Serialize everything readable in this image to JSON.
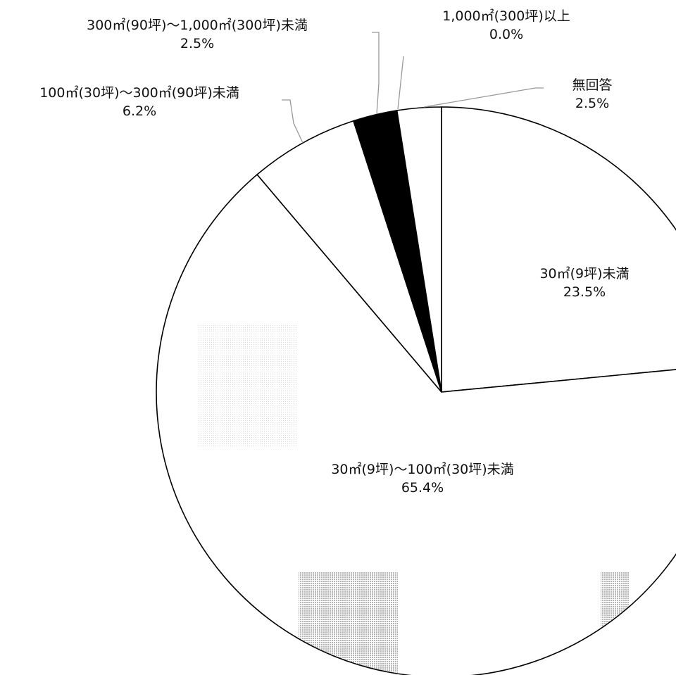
{
  "chart_data": {
    "type": "pie",
    "start_angle_deg": 0,
    "direction": "clockwise",
    "slices": [
      {
        "label": "30㎡(9坪)未満",
        "value_text": "23.5%",
        "value": 23.5,
        "fill": "#ffffff"
      },
      {
        "label": "30㎡(9坪)～100㎡(30坪)未満",
        "value_text": "65.4%",
        "value": 65.4,
        "fill": "#ffffff"
      },
      {
        "label": "100㎡(30坪)～300㎡(90坪)未満",
        "value_text": "6.2%",
        "value": 6.2,
        "fill": "#ffffff"
      },
      {
        "label": "300㎡(90坪)～1,000㎡(300坪)未満",
        "value_text": "2.5%",
        "value": 2.5,
        "fill": "#000000"
      },
      {
        "label": "1,000㎡(300坪)以上",
        "value_text": "0.0%",
        "value": 0.0,
        "fill": "#000000"
      },
      {
        "label": "無回答",
        "value_text": "2.5%",
        "value": 2.5,
        "fill": "#ffffff"
      }
    ],
    "colors": {
      "outline": "#000000",
      "leader": "#999999",
      "dots_light": "#e0e0e0",
      "dots_dark": "#bdbdbd"
    }
  }
}
